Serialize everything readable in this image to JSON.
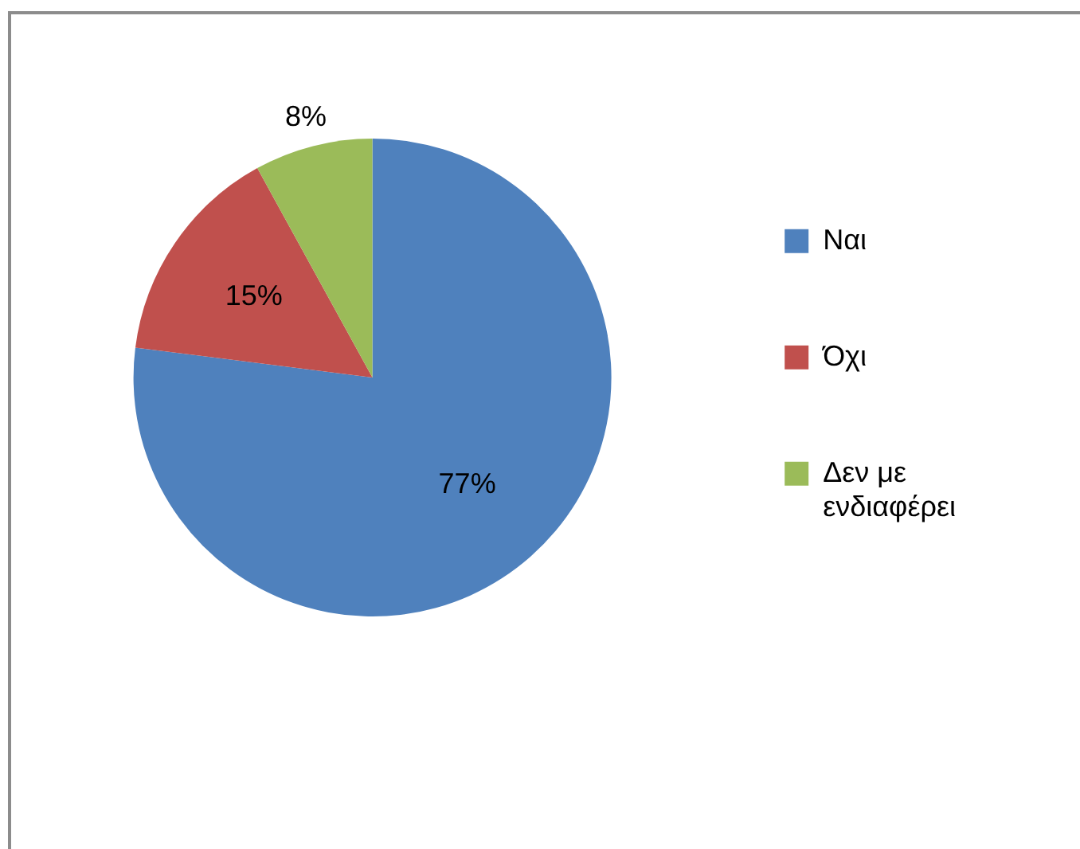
{
  "chart_data": {
    "type": "pie",
    "categories": [
      "Ναι",
      "Όχι",
      "Δεν με ενδιαφέρει"
    ],
    "values": [
      77,
      15,
      8
    ],
    "colors": [
      "#4f81bd",
      "#c0504d",
      "#9bbb59"
    ],
    "value_labels": [
      "77%",
      "15%",
      "8%"
    ],
    "legend": "right"
  }
}
